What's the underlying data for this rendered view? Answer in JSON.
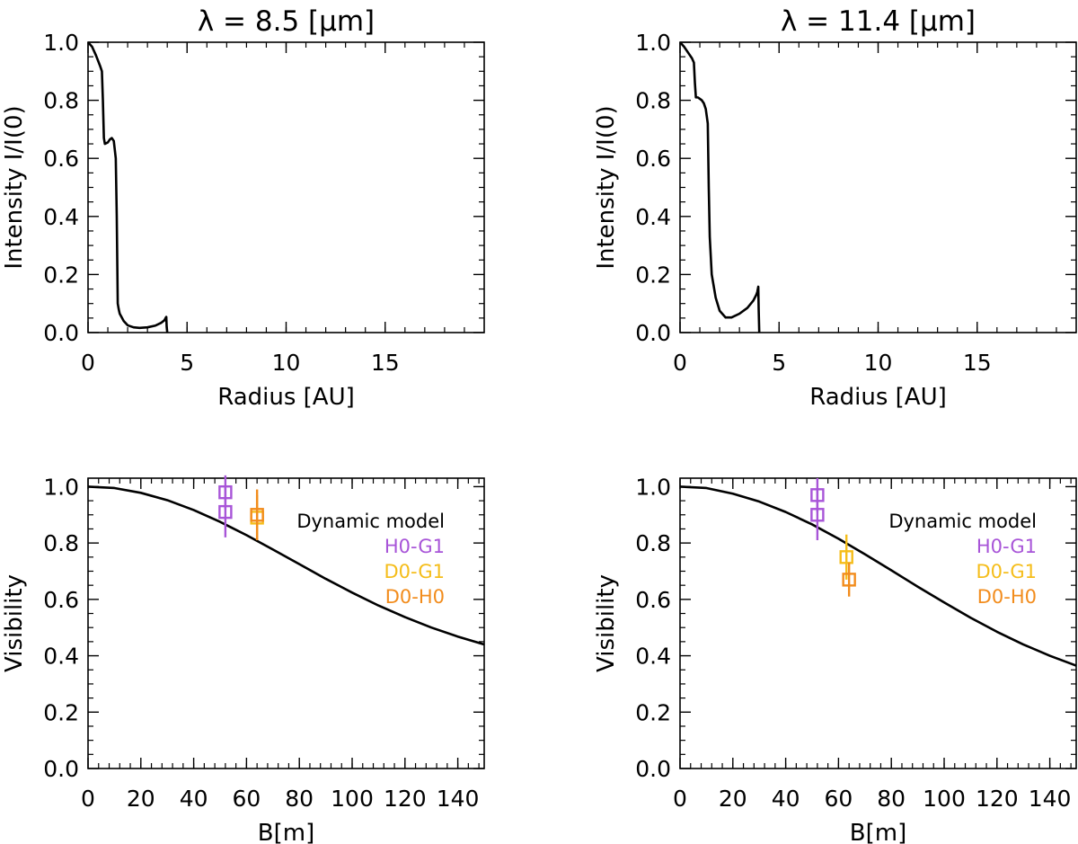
{
  "colors": {
    "line": "#000000",
    "H0-G1": "#a855d8",
    "D0-G1": "#f5bd1a",
    "D0-H0": "#f28c1c"
  },
  "chart_data": [
    {
      "type": "line",
      "title": "λ = 8.5 [μm]",
      "xlabel": "Radius [AU]",
      "ylabel": "Intensity I/I(0)",
      "xlim": [
        0,
        20
      ],
      "ylim": [
        0,
        1
      ],
      "xticks": [
        "0",
        "5",
        "10",
        "15"
      ],
      "yticks": [
        "0.0",
        "0.2",
        "0.4",
        "0.6",
        "0.8",
        "1.0"
      ],
      "series": [
        {
          "x": [
            0.0,
            0.2,
            0.4,
            0.6,
            0.7,
            0.75,
            0.8,
            0.85,
            1.0,
            1.1,
            1.2,
            1.3,
            1.4,
            1.45,
            1.5,
            1.55,
            1.6,
            1.8,
            2.0,
            2.3,
            2.6,
            3.0,
            3.4,
            3.7,
            3.85,
            3.9,
            3.93,
            3.95,
            3.97,
            4.0
          ],
          "y": [
            1.0,
            0.985,
            0.955,
            0.92,
            0.9,
            0.8,
            0.67,
            0.65,
            0.655,
            0.665,
            0.67,
            0.66,
            0.6,
            0.4,
            0.1,
            0.08,
            0.065,
            0.04,
            0.025,
            0.018,
            0.016,
            0.018,
            0.024,
            0.034,
            0.042,
            0.048,
            0.052,
            0.054,
            0.02,
            0.0
          ]
        }
      ]
    },
    {
      "type": "line",
      "title": "λ = 11.4 [μm]",
      "xlabel": "Radius [AU]",
      "ylabel": "Intensity I/I(0)",
      "xlim": [
        0,
        20
      ],
      "ylim": [
        0,
        1
      ],
      "xticks": [
        "0",
        "5",
        "10",
        "15"
      ],
      "yticks": [
        "0.0",
        "0.2",
        "0.4",
        "0.6",
        "0.8",
        "1.0"
      ],
      "series": [
        {
          "x": [
            0.0,
            0.2,
            0.4,
            0.6,
            0.7,
            0.75,
            0.8,
            0.9,
            1.0,
            1.1,
            1.2,
            1.3,
            1.4,
            1.45,
            1.5,
            1.6,
            1.8,
            2.0,
            2.3,
            2.6,
            3.0,
            3.4,
            3.7,
            3.85,
            3.9,
            3.95,
            3.97,
            4.0
          ],
          "y": [
            1.0,
            0.985,
            0.965,
            0.945,
            0.93,
            0.86,
            0.81,
            0.81,
            0.805,
            0.8,
            0.79,
            0.77,
            0.72,
            0.5,
            0.33,
            0.2,
            0.12,
            0.075,
            0.052,
            0.052,
            0.065,
            0.085,
            0.11,
            0.13,
            0.14,
            0.158,
            0.08,
            0.0
          ]
        }
      ]
    },
    {
      "type": "line",
      "title": "",
      "xlabel": "B[m]",
      "ylabel": "Visibility",
      "xlim": [
        0,
        150
      ],
      "ylim": [
        0,
        1.03
      ],
      "xticks": [
        "0",
        "20",
        "40",
        "60",
        "80",
        "100",
        "120",
        "140"
      ],
      "yticks": [
        "0.0",
        "0.2",
        "0.4",
        "0.6",
        "0.8",
        "1.0"
      ],
      "legend_title": "Dynamic model",
      "legend_position": "top-right",
      "series": [
        {
          "x": [
            0,
            10,
            20,
            30,
            40,
            50,
            60,
            70,
            80,
            90,
            100,
            110,
            120,
            130,
            140,
            150
          ],
          "y": [
            1.0,
            0.995,
            0.978,
            0.952,
            0.917,
            0.875,
            0.828,
            0.777,
            0.725,
            0.673,
            0.624,
            0.578,
            0.537,
            0.5,
            0.468,
            0.44
          ]
        }
      ],
      "measurements": [
        {
          "name": "H0-G1",
          "color_key": "H0-G1",
          "points": [
            {
              "x": 52,
              "y": 0.98,
              "err": 0.06
            },
            {
              "x": 52,
              "y": 0.91,
              "err": 0.09
            }
          ]
        },
        {
          "name": "D0-G1",
          "color_key": "D0-G1",
          "points": [
            {
              "x": 64,
              "y": 0.89,
              "err": 0.08
            }
          ]
        },
        {
          "name": "D0-H0",
          "color_key": "D0-H0",
          "points": [
            {
              "x": 64,
              "y": 0.9,
              "err": 0.09
            }
          ]
        }
      ]
    },
    {
      "type": "line",
      "title": "",
      "xlabel": "B[m]",
      "ylabel": "Visibility",
      "xlim": [
        0,
        150
      ],
      "ylim": [
        0,
        1.03
      ],
      "xticks": [
        "0",
        "20",
        "40",
        "60",
        "80",
        "100",
        "120",
        "140"
      ],
      "yticks": [
        "0.0",
        "0.2",
        "0.4",
        "0.6",
        "0.8",
        "1.0"
      ],
      "legend_title": "Dynamic model",
      "legend_position": "top-right",
      "series": [
        {
          "x": [
            0,
            10,
            20,
            30,
            40,
            50,
            60,
            70,
            80,
            90,
            100,
            110,
            120,
            130,
            140,
            150
          ],
          "y": [
            1.0,
            0.995,
            0.975,
            0.947,
            0.91,
            0.866,
            0.815,
            0.76,
            0.703,
            0.645,
            0.589,
            0.535,
            0.485,
            0.44,
            0.4,
            0.365
          ]
        }
      ],
      "measurements": [
        {
          "name": "H0-G1",
          "color_key": "H0-G1",
          "points": [
            {
              "x": 52,
              "y": 0.97,
              "err": 0.06
            },
            {
              "x": 52,
              "y": 0.9,
              "err": 0.09
            }
          ]
        },
        {
          "name": "D0-G1",
          "color_key": "D0-G1",
          "points": [
            {
              "x": 63,
              "y": 0.75,
              "err": 0.08
            }
          ]
        },
        {
          "name": "D0-H0",
          "color_key": "D0-H0",
          "points": [
            {
              "x": 64,
              "y": 0.67,
              "err": 0.06
            }
          ]
        }
      ]
    }
  ]
}
